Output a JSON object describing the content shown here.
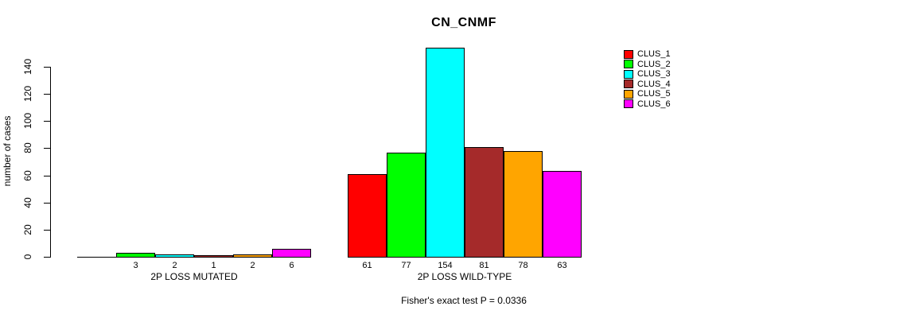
{
  "chart_data": {
    "type": "bar",
    "title": "CN_CNMF",
    "ylabel": "number of cases",
    "ylim": [
      0,
      140
    ],
    "yticks": [
      0,
      20,
      40,
      60,
      80,
      100,
      120,
      140
    ],
    "grid": false,
    "legend_position": "right",
    "series": [
      "CLUS_1",
      "CLUS_2",
      "CLUS_3",
      "CLUS_4",
      "CLUS_5",
      "CLUS_6"
    ],
    "series_colors": [
      "#FF0000",
      "#00FF00",
      "#00FFFF",
      "#A52A2A",
      "#FFA500",
      "#FF00FF"
    ],
    "groups": [
      {
        "category": "2P LOSS MUTATED",
        "values": [
          0,
          3,
          2,
          1,
          2,
          6
        ],
        "bar_labels": [
          "",
          "3",
          "2",
          "1",
          "2",
          "6"
        ]
      },
      {
        "category": "2P LOSS WILD-TYPE",
        "values": [
          61,
          77,
          154,
          81,
          78,
          63
        ],
        "bar_labels": [
          "61",
          "77",
          "154",
          "81",
          "78",
          "63"
        ]
      }
    ],
    "annotation": "Fisher's exact test P = 0.0336"
  }
}
